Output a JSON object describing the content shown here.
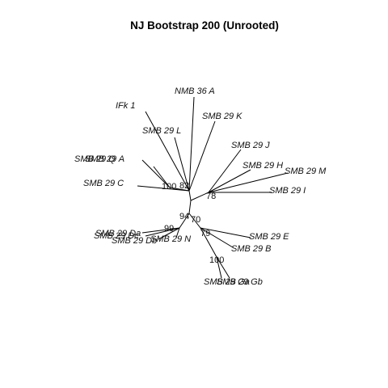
{
  "title": "NJ Bootstrap 200 (Unrooted)",
  "tips": [
    "NMB 36 A",
    "IFk 1",
    "SMB 29 K",
    "SMB 29 L",
    "SMB 29 J",
    "SMB 29 Q",
    "SMB 29 A",
    "SMB 29 H",
    "SMB 29 M",
    "SMB 29 C",
    "SMB 29 I",
    "SMB 29 Da",
    "SMB 29 Dc",
    "SMB 29 Db",
    "SMB 29 N",
    "SMB 29 E",
    "SMB 29 B",
    "SMB 29 Ga",
    "SMB 29 Gb"
  ],
  "bootstrap": [
    "100",
    "82",
    "78",
    "94",
    "70",
    "99",
    "79",
    "100"
  ]
}
